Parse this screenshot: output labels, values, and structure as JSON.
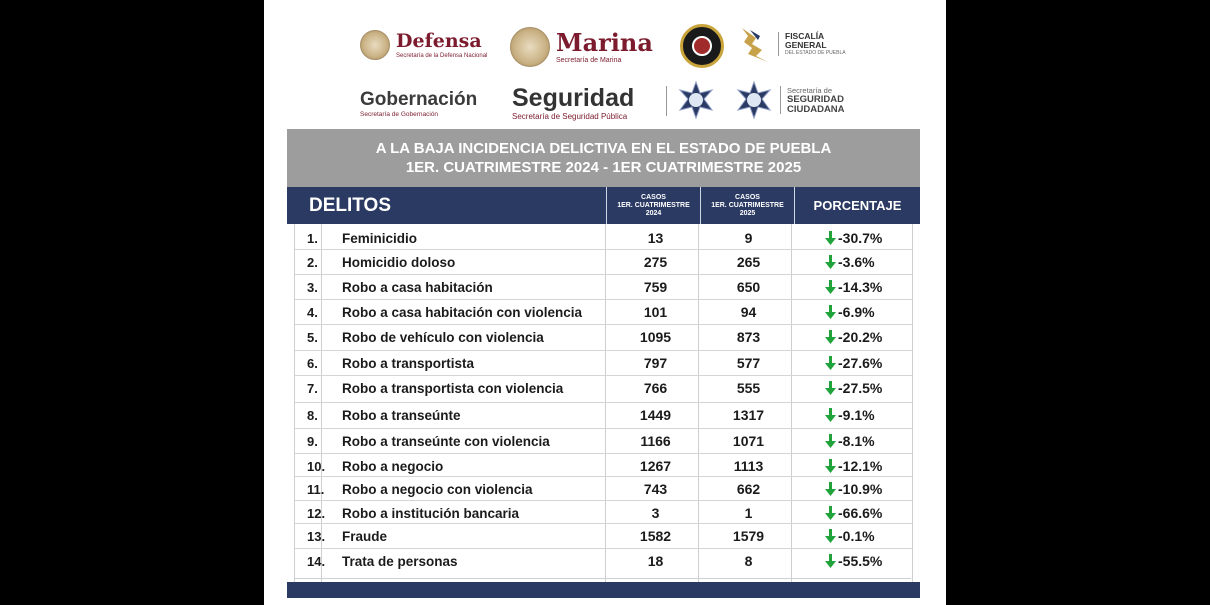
{
  "logos": {
    "defensa": {
      "name": "Defensa",
      "sub": "Secretaría de la Defensa Nacional"
    },
    "marina": {
      "name": "Marina",
      "sub": "Secretaría de Marina"
    },
    "fiscalia": {
      "line1": "FISCALÍA",
      "line2": "GENERAL",
      "line3": "DEL ESTADO DE PUEBLA"
    },
    "gobernacion": {
      "name": "Gobernación",
      "sub": "Secretaría de Gobernación"
    },
    "seguridad": {
      "name": "Seguridad",
      "sub": "Secretaría de Seguridad Pública"
    },
    "ssc": {
      "line1": "Secretaría de",
      "line2": "SEGURIDAD",
      "line3": "CIUDADANA"
    }
  },
  "title": {
    "line1": "A LA BAJA INCIDENCIA DELICTIVA EN EL ESTADO DE PUEBLA",
    "line2": "1ER. CUATRIMESTRE 2024 - 1ER CUATRIMESTRE 2025"
  },
  "headers": {
    "delitos": "DELITOS",
    "col_a": [
      "CASOS",
      "1ER. CUATRIMESTRE",
      "2024"
    ],
    "col_b": [
      "CASOS",
      "1ER. CUATRIMESTRE",
      "2025"
    ],
    "porcentaje": "PORCENTAJE"
  },
  "rows": [
    {
      "num": "1.",
      "delito": "Feminicidio",
      "c2024": "13",
      "c2025": "9",
      "pct": "-30.7%"
    },
    {
      "num": "2.",
      "delito": "Homicidio doloso",
      "c2024": "275",
      "c2025": "265",
      "pct": "-3.6%"
    },
    {
      "num": "3.",
      "delito": "Robo a casa habitación",
      "c2024": "759",
      "c2025": "650",
      "pct": "-14.3%"
    },
    {
      "num": "4.",
      "delito": "Robo a casa habitación con violencia",
      "c2024": "101",
      "c2025": "94",
      "pct": "-6.9%"
    },
    {
      "num": "5.",
      "delito": "Robo de vehículo con violencia",
      "c2024": "1095",
      "c2025": "873",
      "pct": "-20.2%"
    },
    {
      "num": "6.",
      "delito": "Robo a transportista",
      "c2024": "797",
      "c2025": "577",
      "pct": "-27.6%"
    },
    {
      "num": "7.",
      "delito": "Robo a transportista con violencia",
      "c2024": "766",
      "c2025": "555",
      "pct": "-27.5%"
    },
    {
      "num": "8.",
      "delito": "Robo a transeúnte",
      "c2024": "1449",
      "c2025": "1317",
      "pct": "-9.1%"
    },
    {
      "num": "9.",
      "delito": "Robo a transeúnte con violencia",
      "c2024": "1166",
      "c2025": "1071",
      "pct": "-8.1%"
    },
    {
      "num": "10.",
      "delito": "Robo a negocio",
      "c2024": "1267",
      "c2025": "1113",
      "pct": "-12.1%"
    },
    {
      "num": "11.",
      "delito": "Robo a negocio con violencia",
      "c2024": "743",
      "c2025": "662",
      "pct": "-10.9%"
    },
    {
      "num": "12.",
      "delito": "Robo a institución bancaria",
      "c2024": "3",
      "c2025": "1",
      "pct": "-66.6%"
    },
    {
      "num": "13.",
      "delito": "Fraude",
      "c2024": "1582",
      "c2025": "1579",
      "pct": "-0.1%"
    },
    {
      "num": "14.",
      "delito": "Trata de personas",
      "c2024": "18",
      "c2025": "8",
      "pct": "-55.5%"
    }
  ],
  "colors": {
    "header_navy": "#2b3a63",
    "title_gray": "#9d9d9d",
    "arrow_green": "#1fa33a",
    "guinda": "#7b1b2d"
  }
}
